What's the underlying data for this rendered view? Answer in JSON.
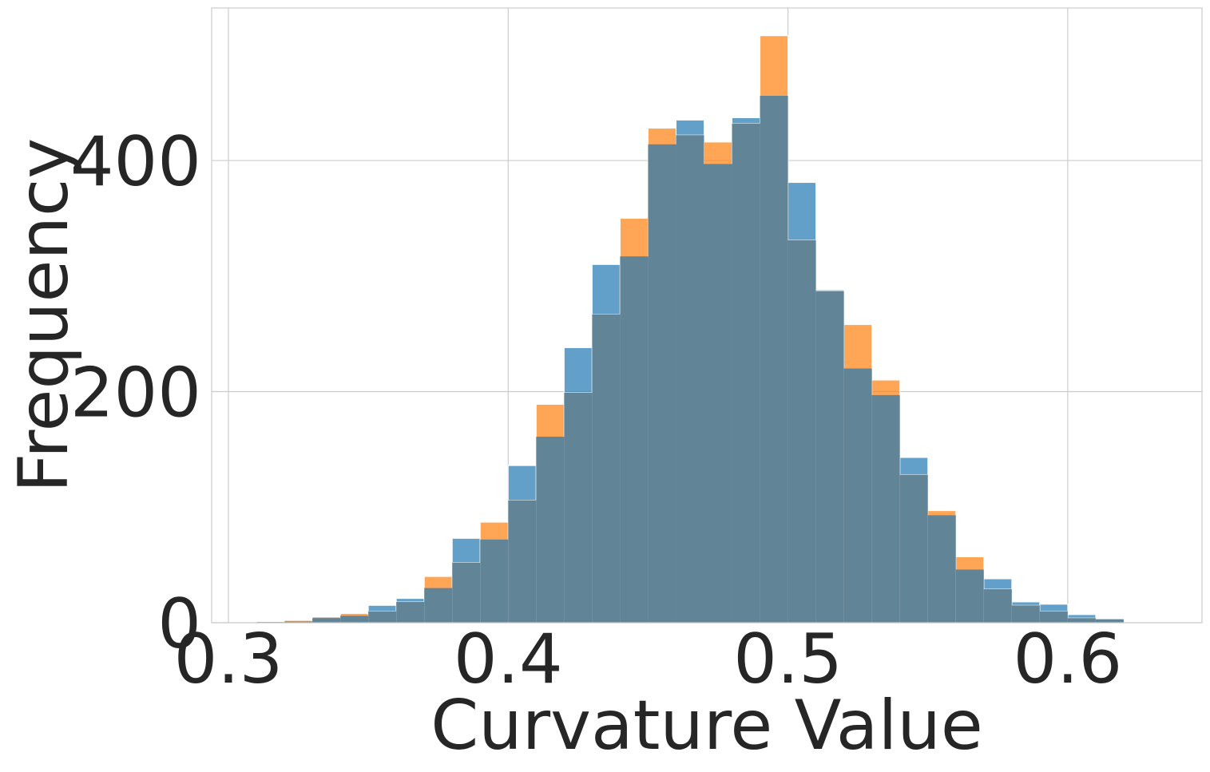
{
  "chart_data": {
    "type": "histogram",
    "xlabel": "Curvature Value",
    "ylabel": "Frequency",
    "xlim": [
      0.294,
      0.648
    ],
    "ylim": [
      0,
      532
    ],
    "x_ticks": [
      0.3,
      0.4,
      0.5,
      0.6
    ],
    "x_tick_labels": [
      "0.3",
      "0.4",
      "0.5",
      "0.6"
    ],
    "y_ticks": [
      0,
      200,
      400
    ],
    "y_tick_labels": [
      "0",
      "200",
      "400"
    ],
    "grid": true,
    "bin_edges": [
      0.31,
      0.32,
      0.33,
      0.34,
      0.35,
      0.36,
      0.37,
      0.38,
      0.39,
      0.4,
      0.41,
      0.42,
      0.43,
      0.44,
      0.45,
      0.46,
      0.47,
      0.48,
      0.49,
      0.5,
      0.51,
      0.52,
      0.53,
      0.54,
      0.55,
      0.56,
      0.57,
      0.58,
      0.59,
      0.6,
      0.61,
      0.62
    ],
    "series": [
      {
        "color": "#1f77b4",
        "values": [
          1,
          1,
          4,
          6,
          15,
          21,
          30,
          73,
          72,
          136,
          161,
          238,
          310,
          317,
          414,
          435,
          397,
          437,
          456,
          381,
          288,
          220,
          197,
          143,
          93,
          46,
          38,
          18,
          16,
          7,
          3
        ]
      },
      {
        "color": "#ff7f0e",
        "values": [
          0,
          2,
          5,
          8,
          10,
          18,
          40,
          52,
          87,
          106,
          189,
          199,
          267,
          350,
          428,
          422,
          416,
          432,
          508,
          331,
          287,
          258,
          210,
          128,
          97,
          57,
          29,
          15,
          10,
          4,
          3
        ]
      }
    ]
  }
}
